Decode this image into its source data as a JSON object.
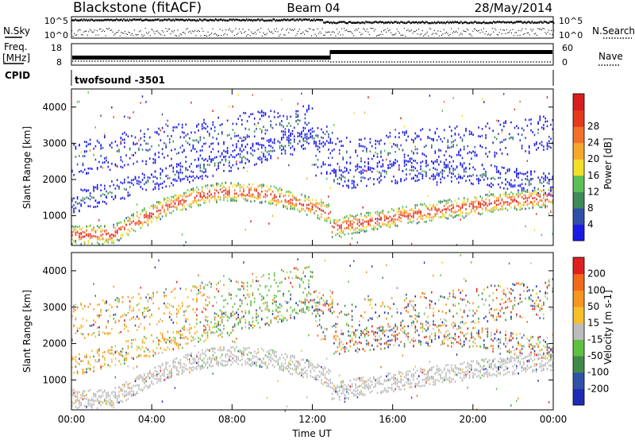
{
  "header": {
    "station": "Blackstone (fitACF)",
    "beam": "Beam 04",
    "date": "28/May/2014"
  },
  "panels": {
    "nsky_label": "N.Sky",
    "nsearch_label": "N.Search",
    "freq_label": "Freq.",
    "freq_unit": "[MHz]",
    "nave_label": "Nave",
    "cpid_label": "CPID",
    "cpid_value": "twofsound -3501",
    "noise_ticks": [
      "10^5",
      "10^0"
    ],
    "freq_ticks": [
      "18",
      "8"
    ],
    "nave_ticks": [
      "60",
      "0"
    ]
  },
  "chart_data": [
    {
      "type": "heatmap",
      "title": "",
      "xlabel": "",
      "ylabel": "Slant Range [km]",
      "ylim": [
        180,
        4500
      ],
      "x_ticks": [
        "00:00",
        "04:00",
        "08:00",
        "12:00",
        "16:00",
        "20:00",
        "00:00"
      ],
      "y_ticks": [
        1000,
        2000,
        3000,
        4000
      ],
      "colorbar": {
        "label": "Power [dB]",
        "ticks": [
          4,
          8,
          12,
          16,
          20,
          24,
          28
        ],
        "colors": [
          "#1a1ae6",
          "#2f4fa8",
          "#3f8a5a",
          "#5dbf57",
          "#f2e028",
          "#f7a82a",
          "#f2702a",
          "#e63a1e",
          "#d91e1e"
        ]
      }
    },
    {
      "type": "heatmap",
      "title": "",
      "xlabel": "Time UT",
      "ylabel": "Slant Range [km]",
      "ylim": [
        180,
        4500
      ],
      "x_ticks": [
        "00:00",
        "04:00",
        "08:00",
        "12:00",
        "16:00",
        "20:00",
        "00:00"
      ],
      "y_ticks": [
        1000,
        2000,
        3000,
        4000
      ],
      "colorbar": {
        "label": "Velocity [m s-1]",
        "ticks": [
          200,
          100,
          50,
          15,
          -15,
          -50,
          -100,
          -200
        ],
        "colors": [
          "#1f2bb5",
          "#2f52a8",
          "#3f8a4a",
          "#60c040",
          "#bdbdbd",
          "#f5c02a",
          "#f7961e",
          "#f06a1a",
          "#e02020"
        ]
      }
    }
  ]
}
